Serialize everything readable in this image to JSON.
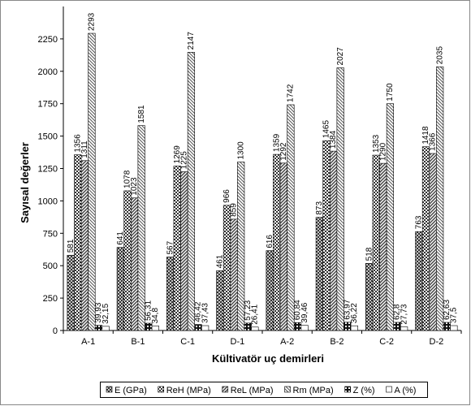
{
  "chart_data": {
    "type": "bar",
    "x_label": "Kültivatör uç demirleri",
    "y_label": "Sayısal değerler",
    "categories": [
      "A-1",
      "B-1",
      "C-1",
      "D-1",
      "A-2",
      "B-2",
      "C-2",
      "D-2"
    ],
    "series": [
      {
        "name": "E (GPa)",
        "color": "#222222",
        "values": [
          581,
          641,
          567,
          461,
          616,
          873,
          518,
          763
        ]
      },
      {
        "name": "ReH (MPa)",
        "color": "#333333",
        "values": [
          1356,
          1078,
          1269,
          966,
          1359,
          1465,
          1353,
          1418
        ]
      },
      {
        "name": "ReL (MPa)",
        "color": "#444444",
        "values": [
          1311,
          1023,
          1225,
          859,
          1292,
          1384,
          1290,
          1366
        ]
      },
      {
        "name": "Rm (MPa)",
        "color": "#555555",
        "values": [
          2293,
          1581,
          2147,
          1300,
          1742,
          2027,
          1750,
          2035
        ]
      },
      {
        "name": "Z (%)",
        "color": "#111111",
        "values": [
          39.93,
          56.31,
          46.42,
          57.23,
          60.84,
          63.97,
          62.8,
          62.63
        ],
        "value_labels": [
          "39,93",
          "56,31",
          "46,42",
          "57,23",
          "60,84",
          "63,97",
          "62,8",
          "62,63"
        ]
      },
      {
        "name": "A (%)",
        "color": "#ffffff",
        "values": [
          32.15,
          34.8,
          37.43,
          26.41,
          39.46,
          36.22,
          27.73,
          37.5
        ],
        "value_labels": [
          "32,15",
          "34,8",
          "37,43",
          "26,41",
          "39,46",
          "36,22",
          "27,73",
          "37,5"
        ]
      }
    ],
    "ylim": [
      0,
      2500
    ],
    "yticks": [
      0,
      250,
      500,
      750,
      1000,
      1250,
      1500,
      1750,
      2000,
      2250
    ],
    "grid": false,
    "legend": "bottom"
  }
}
